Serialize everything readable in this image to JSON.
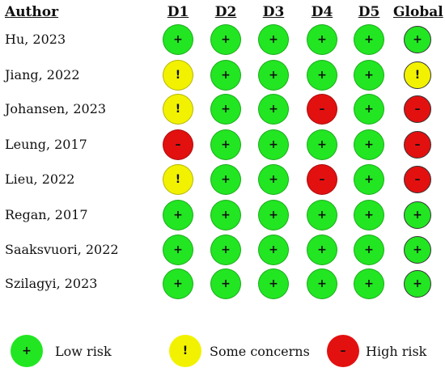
{
  "header": {
    "author": "Author",
    "columns": [
      "D1",
      "D2",
      "D3",
      "D4",
      "D5",
      "Global"
    ]
  },
  "colors": {
    "low": "#22e622",
    "some": "#f2f200",
    "high": "#e31010"
  },
  "symbols": {
    "low": "+",
    "some": "!",
    "high": "–"
  },
  "studies": [
    {
      "author": "Hu, 2023",
      "ratings": [
        "low",
        "low",
        "low",
        "low",
        "low",
        "low"
      ]
    },
    {
      "author": "Jiang, 2022",
      "ratings": [
        "some",
        "low",
        "low",
        "low",
        "low",
        "some"
      ]
    },
    {
      "author": "Johansen, 2023",
      "ratings": [
        "some",
        "low",
        "low",
        "high",
        "low",
        "high"
      ]
    },
    {
      "author": "Leung, 2017",
      "ratings": [
        "high",
        "low",
        "low",
        "low",
        "low",
        "high"
      ]
    },
    {
      "author": "Lieu, 2022",
      "ratings": [
        "some",
        "low",
        "low",
        "high",
        "low",
        "high"
      ]
    },
    {
      "author": "Regan, 2017",
      "ratings": [
        "low",
        "low",
        "low",
        "low",
        "low",
        "low"
      ]
    },
    {
      "author": "Saaksvuori, 2022",
      "ratings": [
        "low",
        "low",
        "low",
        "low",
        "low",
        "low"
      ]
    },
    {
      "author": "Szilagyi, 2023",
      "ratings": [
        "low",
        "low",
        "low",
        "low",
        "low",
        "low"
      ]
    }
  ],
  "legend": [
    {
      "level": "low",
      "label": "Low risk"
    },
    {
      "level": "some",
      "label": "Some concerns"
    },
    {
      "level": "high",
      "label": "High risk"
    }
  ]
}
